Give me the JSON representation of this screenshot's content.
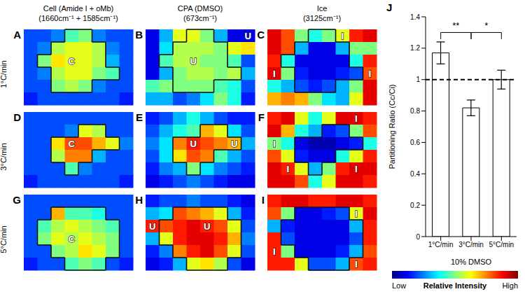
{
  "figure": {
    "columns": [
      {
        "title": "Cell (Amide I + oMb)",
        "subtitle": "(1660cm⁻¹ + 1585cm⁻¹)"
      },
      {
        "title": "CPA (DMSO)",
        "subtitle": "(673cm⁻¹)"
      },
      {
        "title": "Ice",
        "subtitle": "(3125cm⁻¹)"
      }
    ],
    "rows": [
      {
        "label": "1°C/min",
        "cell_mask": [
          [
            0,
            0,
            0,
            1,
            1,
            0,
            0,
            0
          ],
          [
            0,
            0,
            1,
            1,
            1,
            1,
            0,
            0
          ],
          [
            0,
            1,
            1,
            1,
            1,
            1,
            0,
            0
          ],
          [
            0,
            0,
            1,
            1,
            1,
            1,
            1,
            0
          ],
          [
            0,
            0,
            1,
            1,
            1,
            0,
            0,
            0
          ],
          [
            0,
            0,
            0,
            0,
            0,
            0,
            0,
            0
          ]
        ],
        "panels": [
          {
            "letter": "A",
            "cells": [
              [
                0.2,
                0.2,
                0.25,
                0.45,
                0.5,
                0.25,
                0.2,
                0.2
              ],
              [
                0.2,
                0.25,
                0.55,
                0.6,
                0.6,
                0.55,
                0.25,
                0.2
              ],
              [
                0.2,
                0.5,
                0.65,
                0.6,
                0.6,
                0.55,
                0.3,
                0.2
              ],
              [
                0.2,
                0.25,
                0.55,
                0.6,
                0.6,
                0.5,
                0.45,
                0.2
              ],
              [
                0.2,
                0.2,
                0.5,
                0.55,
                0.5,
                0.25,
                0.2,
                0.2
              ],
              [
                0.15,
                0.2,
                0.2,
                0.2,
                0.2,
                0.2,
                0.2,
                0.15
              ]
            ],
            "annotations": [
              {
                "text": "C",
                "row": 2,
                "col": 3
              }
            ]
          },
          {
            "letter": "B",
            "cells": [
              [
                0.1,
                0.3,
                0.6,
                0.6,
                0.5,
                0.3,
                0.1,
                0.1
              ],
              [
                0.1,
                0.35,
                0.55,
                0.55,
                0.55,
                0.5,
                0.6,
                0.65
              ],
              [
                0.1,
                0.45,
                0.55,
                0.55,
                0.5,
                0.5,
                0.45,
                0.2
              ],
              [
                0.1,
                0.3,
                0.5,
                0.55,
                0.55,
                0.5,
                0.55,
                0.3
              ],
              [
                0.45,
                0.5,
                0.5,
                0.5,
                0.5,
                0.45,
                0.4,
                0.2
              ],
              [
                0.3,
                0.3,
                0.2,
                0.25,
                0.35,
                0.5,
                0.4,
                0.15
              ]
            ],
            "annotations": [
              {
                "text": "U",
                "row": 2,
                "col": 3
              },
              {
                "text": "U",
                "row": 0,
                "col": 7
              }
            ]
          },
          {
            "letter": "C",
            "cells": [
              [
                0.9,
                0.8,
                0.5,
                0.4,
                0.5,
                0.6,
                0.85,
                0.9
              ],
              [
                0.9,
                0.8,
                0.3,
                0.1,
                0.1,
                0.3,
                0.5,
                0.5
              ],
              [
                0.85,
                0.4,
                0.1,
                0.1,
                0.1,
                0.1,
                0.4,
                0.85
              ],
              [
                0.9,
                0.5,
                0.15,
                0.1,
                0.1,
                0.15,
                0.2,
                0.8
              ],
              [
                0.4,
                0.3,
                0.2,
                0.15,
                0.2,
                0.3,
                0.5,
                0.9
              ],
              [
                0.7,
                0.75,
                0.7,
                0.5,
                0.35,
                0.3,
                0.6,
                0.9
              ]
            ],
            "annotations": [
              {
                "text": "I",
                "row": 0,
                "col": 5
              },
              {
                "text": "I",
                "row": 3,
                "col": 0
              },
              {
                "text": "I",
                "row": 3,
                "col": 7
              }
            ]
          }
        ]
      },
      {
        "label": "3°C/min",
        "cell_mask": [
          [
            0,
            0,
            0,
            0,
            0,
            0,
            0,
            0
          ],
          [
            0,
            0,
            0,
            0,
            1,
            1,
            0,
            0
          ],
          [
            0,
            0,
            1,
            1,
            1,
            1,
            1,
            0
          ],
          [
            0,
            0,
            1,
            1,
            1,
            0,
            0,
            0
          ],
          [
            0,
            0,
            0,
            1,
            0,
            0,
            0,
            0
          ],
          [
            0,
            0,
            0,
            0,
            0,
            0,
            0,
            0
          ]
        ],
        "panels": [
          {
            "letter": "D",
            "cells": [
              [
                0.2,
                0.2,
                0.2,
                0.2,
                0.2,
                0.2,
                0.2,
                0.2
              ],
              [
                0.2,
                0.2,
                0.2,
                0.25,
                0.6,
                0.55,
                0.2,
                0.2
              ],
              [
                0.2,
                0.2,
                0.65,
                0.8,
                0.8,
                0.7,
                0.6,
                0.25
              ],
              [
                0.2,
                0.2,
                0.55,
                0.75,
                0.75,
                0.3,
                0.2,
                0.2
              ],
              [
                0.2,
                0.2,
                0.2,
                0.45,
                0.25,
                0.2,
                0.2,
                0.2
              ],
              [
                0.15,
                0.2,
                0.2,
                0.2,
                0.2,
                0.2,
                0.2,
                0.15
              ]
            ],
            "annotations": [
              {
                "text": "C",
                "row": 2,
                "col": 3
              }
            ]
          },
          {
            "letter": "E",
            "cells": [
              [
                0.15,
                0.2,
                0.3,
                0.4,
                0.3,
                0.2,
                0.15,
                0.15
              ],
              [
                0.2,
                0.3,
                0.4,
                0.45,
                0.7,
                0.6,
                0.35,
                0.2
              ],
              [
                0.25,
                0.35,
                0.75,
                0.85,
                0.8,
                0.75,
                0.7,
                0.3
              ],
              [
                0.2,
                0.35,
                0.65,
                0.8,
                0.75,
                0.45,
                0.3,
                0.2
              ],
              [
                0.15,
                0.25,
                0.3,
                0.5,
                0.35,
                0.25,
                0.2,
                0.15
              ],
              [
                0.1,
                0.15,
                0.2,
                0.25,
                0.2,
                0.15,
                0.1,
                0.1
              ]
            ],
            "annotations": [
              {
                "text": "U",
                "row": 2,
                "col": 3
              },
              {
                "text": "U",
                "row": 2,
                "col": 6
              }
            ]
          },
          {
            "letter": "F",
            "cells": [
              [
                0.85,
                0.9,
                0.6,
                0.4,
                0.6,
                0.9,
                0.9,
                0.85
              ],
              [
                0.9,
                0.7,
                0.4,
                0.3,
                0.15,
                0.2,
                0.5,
                0.8
              ],
              [
                0.5,
                0.4,
                0.1,
                0.05,
                0.05,
                0.1,
                0.15,
                0.4
              ],
              [
                0.8,
                0.6,
                0.15,
                0.1,
                0.1,
                0.4,
                0.6,
                0.85
              ],
              [
                0.9,
                0.85,
                0.6,
                0.3,
                0.5,
                0.85,
                0.9,
                0.9
              ],
              [
                0.9,
                0.9,
                0.8,
                0.4,
                0.6,
                0.9,
                0.9,
                0.85
              ]
            ],
            "annotations": [
              {
                "text": "I",
                "row": 0,
                "col": 6
              },
              {
                "text": "I",
                "row": 2,
                "col": 0
              },
              {
                "text": "I",
                "row": 4,
                "col": 1
              },
              {
                "text": "I",
                "row": 4,
                "col": 6
              }
            ]
          }
        ]
      },
      {
        "label": "5°C/min",
        "cell_mask": [
          [
            0,
            0,
            0,
            0,
            0,
            0,
            0,
            0
          ],
          [
            0,
            0,
            1,
            1,
            1,
            1,
            0,
            0
          ],
          [
            0,
            1,
            1,
            1,
            1,
            1,
            1,
            0
          ],
          [
            0,
            1,
            1,
            1,
            1,
            1,
            1,
            0
          ],
          [
            0,
            0,
            1,
            1,
            1,
            1,
            1,
            0
          ],
          [
            0,
            0,
            0,
            1,
            1,
            1,
            0,
            0
          ]
        ],
        "panels": [
          {
            "letter": "G",
            "cells": [
              [
                0.2,
                0.2,
                0.2,
                0.2,
                0.2,
                0.2,
                0.2,
                0.2
              ],
              [
                0.2,
                0.2,
                0.7,
                0.45,
                0.45,
                0.4,
                0.2,
                0.2
              ],
              [
                0.2,
                0.45,
                0.55,
                0.6,
                0.55,
                0.5,
                0.45,
                0.2
              ],
              [
                0.2,
                0.5,
                0.6,
                0.55,
                0.6,
                0.55,
                0.5,
                0.2
              ],
              [
                0.2,
                0.2,
                0.5,
                0.55,
                0.65,
                0.6,
                0.5,
                0.2
              ],
              [
                0.15,
                0.2,
                0.2,
                0.45,
                0.5,
                0.45,
                0.2,
                0.15
              ]
            ],
            "annotations": [
              {
                "text": "C",
                "row": 3,
                "col": 3
              }
            ]
          },
          {
            "letter": "H",
            "cells": [
              [
                0.15,
                0.2,
                0.2,
                0.25,
                0.2,
                0.2,
                0.15,
                0.1
              ],
              [
                0.3,
                0.35,
                0.8,
                0.75,
                0.7,
                0.6,
                0.3,
                0.15
              ],
              [
                0.85,
                0.8,
                0.85,
                0.9,
                0.85,
                0.8,
                0.6,
                0.2
              ],
              [
                0.3,
                0.6,
                0.85,
                0.9,
                0.9,
                0.85,
                0.7,
                0.25
              ],
              [
                0.15,
                0.25,
                0.75,
                0.85,
                0.9,
                0.8,
                0.6,
                0.2
              ],
              [
                0.1,
                0.15,
                0.3,
                0.6,
                0.65,
                0.55,
                0.2,
                0.1
              ]
            ],
            "annotations": [
              {
                "text": "U",
                "row": 2,
                "col": 0
              },
              {
                "text": "U",
                "row": 2,
                "col": 4
              }
            ]
          },
          {
            "letter": "I",
            "cells": [
              [
                0.85,
                0.9,
                0.9,
                0.85,
                0.85,
                0.9,
                0.9,
                0.85
              ],
              [
                0.8,
                0.5,
                0.1,
                0.1,
                0.15,
                0.2,
                0.6,
                0.9
              ],
              [
                0.3,
                0.15,
                0.1,
                0.1,
                0.1,
                0.1,
                0.3,
                0.85
              ],
              [
                0.85,
                0.2,
                0.1,
                0.1,
                0.1,
                0.1,
                0.2,
                0.85
              ],
              [
                0.85,
                0.5,
                0.1,
                0.1,
                0.1,
                0.15,
                0.3,
                0.8
              ],
              [
                0.85,
                0.85,
                0.6,
                0.2,
                0.2,
                0.3,
                0.8,
                0.85
              ]
            ],
            "annotations": [
              {
                "text": "I",
                "row": 1,
                "col": 6
              },
              {
                "text": "I",
                "row": 4,
                "col": 0
              },
              {
                "text": "I",
                "row": 5,
                "col": 6
              }
            ]
          }
        ]
      }
    ],
    "colorbar": {
      "label": "Relative Intensity",
      "low_label": "Low",
      "high_label": "High",
      "range": [
        0,
        1
      ]
    }
  },
  "chart_data": {
    "type": "bar",
    "panel_letter": "J",
    "categories": [
      "1°C/min",
      "3°C/min",
      "5°C/min"
    ],
    "values": [
      1.17,
      0.82,
      1.0
    ],
    "errors": [
      0.07,
      0.05,
      0.06
    ],
    "color": "#ffffff",
    "ylim": [
      0,
      1.4
    ],
    "yticks": [
      0,
      0.2,
      0.4,
      0.6,
      0.8,
      1,
      1.2,
      1.4
    ],
    "ylabel": "Partitioning Ratio (Cc/Ci)",
    "xlabel": "10% DMSO",
    "grid": false,
    "reference_line": {
      "value": 1,
      "line_style": "dashed"
    },
    "significance": [
      {
        "from": 0,
        "to": 1,
        "y": 1.3,
        "label": "**"
      },
      {
        "from": 1,
        "to": 2,
        "y": 1.3,
        "label": "*"
      }
    ]
  }
}
